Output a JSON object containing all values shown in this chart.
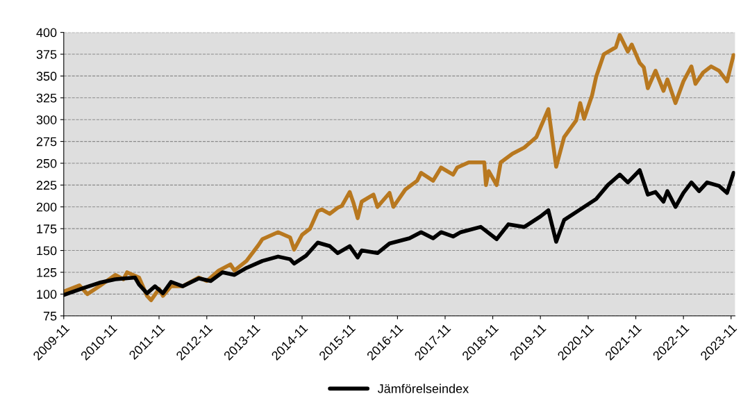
{
  "chart_data": {
    "type": "line",
    "series": [
      {
        "color": "#b8781f",
        "x": [
          "2009-11",
          "2010-03",
          "2010-05",
          "2010-08",
          "2010-12",
          "2011-02",
          "2011-03",
          "2011-06",
          "2011-08",
          "2011-09",
          "2011-11",
          "2011-12",
          "2012-02",
          "2012-05",
          "2012-09",
          "2012-11",
          "2013-02",
          "2013-05",
          "2013-06",
          "2013-09",
          "2013-12",
          "2014-01",
          "2014-05",
          "2014-08",
          "2014-09",
          "2014-11",
          "2015-01",
          "2015-03",
          "2015-04",
          "2015-06",
          "2015-08",
          "2015-09",
          "2015-11",
          "2015-12",
          "2016-01",
          "2016-02",
          "2016-05",
          "2016-06",
          "2016-09",
          "2016-10",
          "2017-01",
          "2017-04",
          "2017-05",
          "2017-08",
          "2017-10",
          "2018-01",
          "2018-02",
          "2018-05",
          "2018-08-28",
          "2018-09-10",
          "2018-10",
          "2018-12",
          "2019-01",
          "2019-04",
          "2019-07",
          "2019-10",
          "2020-01",
          "2020-03",
          "2020-05",
          "2020-08",
          "2020-09",
          "2020-10",
          "2020-12",
          "2021-01",
          "2021-03",
          "2021-06",
          "2021-07",
          "2021-09",
          "2021-10",
          "2021-12",
          "2022-01",
          "2022-02",
          "2022-04",
          "2022-06",
          "2022-07",
          "2022-09",
          "2022-11",
          "2023-01",
          "2023-02",
          "2023-04",
          "2023-06",
          "2023-08",
          "2023-10",
          "2023-11-20"
        ],
        "values": [
          103,
          110,
          100,
          109,
          122,
          117,
          125,
          119,
          98,
          93,
          106,
          98,
          109,
          109,
          119,
          115,
          127,
          134,
          127,
          138,
          156,
          163,
          171,
          165,
          151,
          168,
          175,
          195,
          197,
          192,
          199,
          201,
          217,
          204,
          187,
          206,
          214,
          200,
          216,
          200,
          220,
          230,
          239,
          230,
          245,
          237,
          245,
          251,
          251,
          225,
          241,
          225,
          251,
          261,
          268,
          280,
          312,
          246,
          280,
          299,
          319,
          301,
          328,
          349,
          375,
          383,
          397,
          378,
          386,
          365,
          360,
          336,
          356,
          333,
          346,
          319,
          344,
          361,
          341,
          354,
          361,
          356,
          344,
          374
        ]
      },
      {
        "name": "Jämförelseindex",
        "color": "#000000",
        "x": [
          "2009-11",
          "2010-04",
          "2010-08",
          "2010-12",
          "2011-05",
          "2011-06",
          "2011-08",
          "2011-10",
          "2011-12",
          "2012-02",
          "2012-05",
          "2012-09",
          "2012-12",
          "2013-03",
          "2013-06",
          "2013-09",
          "2014-01",
          "2014-05",
          "2014-08",
          "2014-09",
          "2014-12",
          "2015-03",
          "2015-06",
          "2015-08",
          "2015-11",
          "2016-01",
          "2016-02",
          "2016-06",
          "2016-09",
          "2017-02",
          "2017-05",
          "2017-08",
          "2017-10",
          "2018-01",
          "2018-03",
          "2018-08",
          "2018-12",
          "2019-03",
          "2019-07",
          "2019-11",
          "2020-01",
          "2020-03",
          "2020-05",
          "2020-09",
          "2021-01",
          "2021-04",
          "2021-07",
          "2021-09",
          "2021-12",
          "2022-02",
          "2022-04",
          "2022-06",
          "2022-07",
          "2022-09",
          "2022-11",
          "2023-01",
          "2023-03",
          "2023-05",
          "2023-08",
          "2023-10",
          "2023-11-20"
        ],
        "values": [
          99,
          107,
          113,
          117,
          119,
          111,
          101,
          109,
          101,
          114,
          109,
          118,
          115,
          125,
          122,
          130,
          138,
          143,
          140,
          135,
          144,
          159,
          155,
          147,
          155,
          142,
          150,
          147,
          158,
          164,
          171,
          164,
          171,
          166,
          171,
          177,
          163,
          180,
          177,
          189,
          196,
          160,
          185,
          197,
          209,
          225,
          237,
          228,
          242,
          214,
          217,
          206,
          218,
          200,
          216,
          228,
          218,
          228,
          224,
          216,
          239
        ]
      }
    ],
    "xlim": [
      "2009-11",
      "2023-12"
    ],
    "xticks": [
      {
        "value": "2009-11",
        "label": "2009-11"
      },
      {
        "value": "2010-11",
        "label": "2010-11"
      },
      {
        "value": "2011-11",
        "label": "2011-11"
      },
      {
        "value": "2012-11",
        "label": "2012-11"
      },
      {
        "value": "2013-11",
        "label": "2013-11"
      },
      {
        "value": "2014-11",
        "label": "2014-11"
      },
      {
        "value": "2015-11",
        "label": "2015-11"
      },
      {
        "value": "2016-11",
        "label": "2016-11"
      },
      {
        "value": "2017-11",
        "label": "2017-11"
      },
      {
        "value": "2018-11",
        "label": "2018-11"
      },
      {
        "value": "2019-11",
        "label": "2019-11"
      },
      {
        "value": "2020-11",
        "label": "2020-11"
      },
      {
        "value": "2021-11",
        "label": "2021-11"
      },
      {
        "value": "2022-11",
        "label": "2022-11"
      },
      {
        "value": "2023-11",
        "label": "2023-11"
      }
    ],
    "ylim": [
      75,
      400
    ],
    "yticks": [
      75,
      100,
      125,
      150,
      175,
      200,
      225,
      250,
      275,
      300,
      325,
      350,
      375,
      400
    ],
    "grid": "y",
    "line_style": "solid",
    "marker": "none",
    "legend": "bottom"
  }
}
